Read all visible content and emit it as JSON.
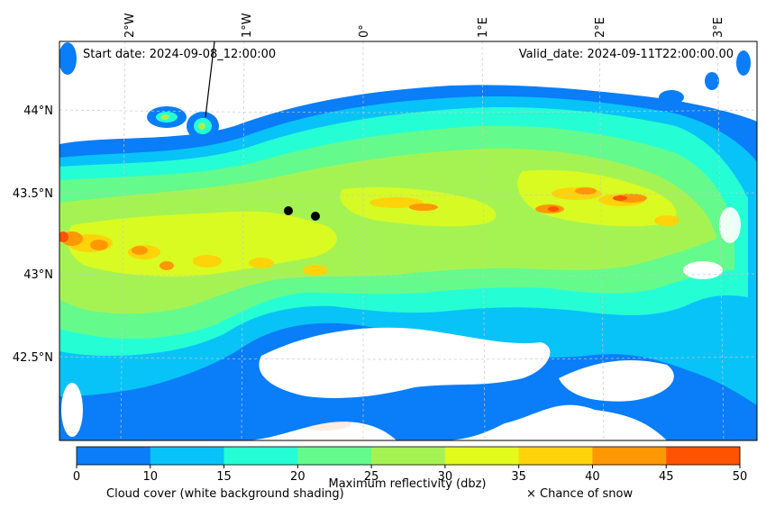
{
  "header": {
    "start_date": "Start date: 2024-09-08_12:00:00",
    "valid_date": "Valid_date: 2024-09-11T22:00:00.00"
  },
  "lon_ticks": [
    "2°W",
    "1°W",
    "0°",
    "1°E",
    "2°E",
    "3°E"
  ],
  "lat_ticks": [
    "44°N",
    "43.5°N",
    "43°N",
    "42.5°N"
  ],
  "colorbar": {
    "ticks": [
      "0",
      "10",
      "15",
      "20",
      "25",
      "30",
      "35",
      "40",
      "45",
      "50"
    ],
    "colors": [
      "#0a7df8",
      "#08c3f8",
      "#25fed4",
      "#65fa8c",
      "#a5f353",
      "#e2fb19",
      "#ffd30a",
      "#ff9805",
      "#fe5301"
    ],
    "title": "Maximum reflectivity (dbz)",
    "note_left": "Cloud cover (white background shading)",
    "note_right": "× Chance of snow"
  },
  "colors": {
    "snow_hatch": "#f7cdb2",
    "grid": "#c8c8c8",
    "frame": "#000000"
  }
}
